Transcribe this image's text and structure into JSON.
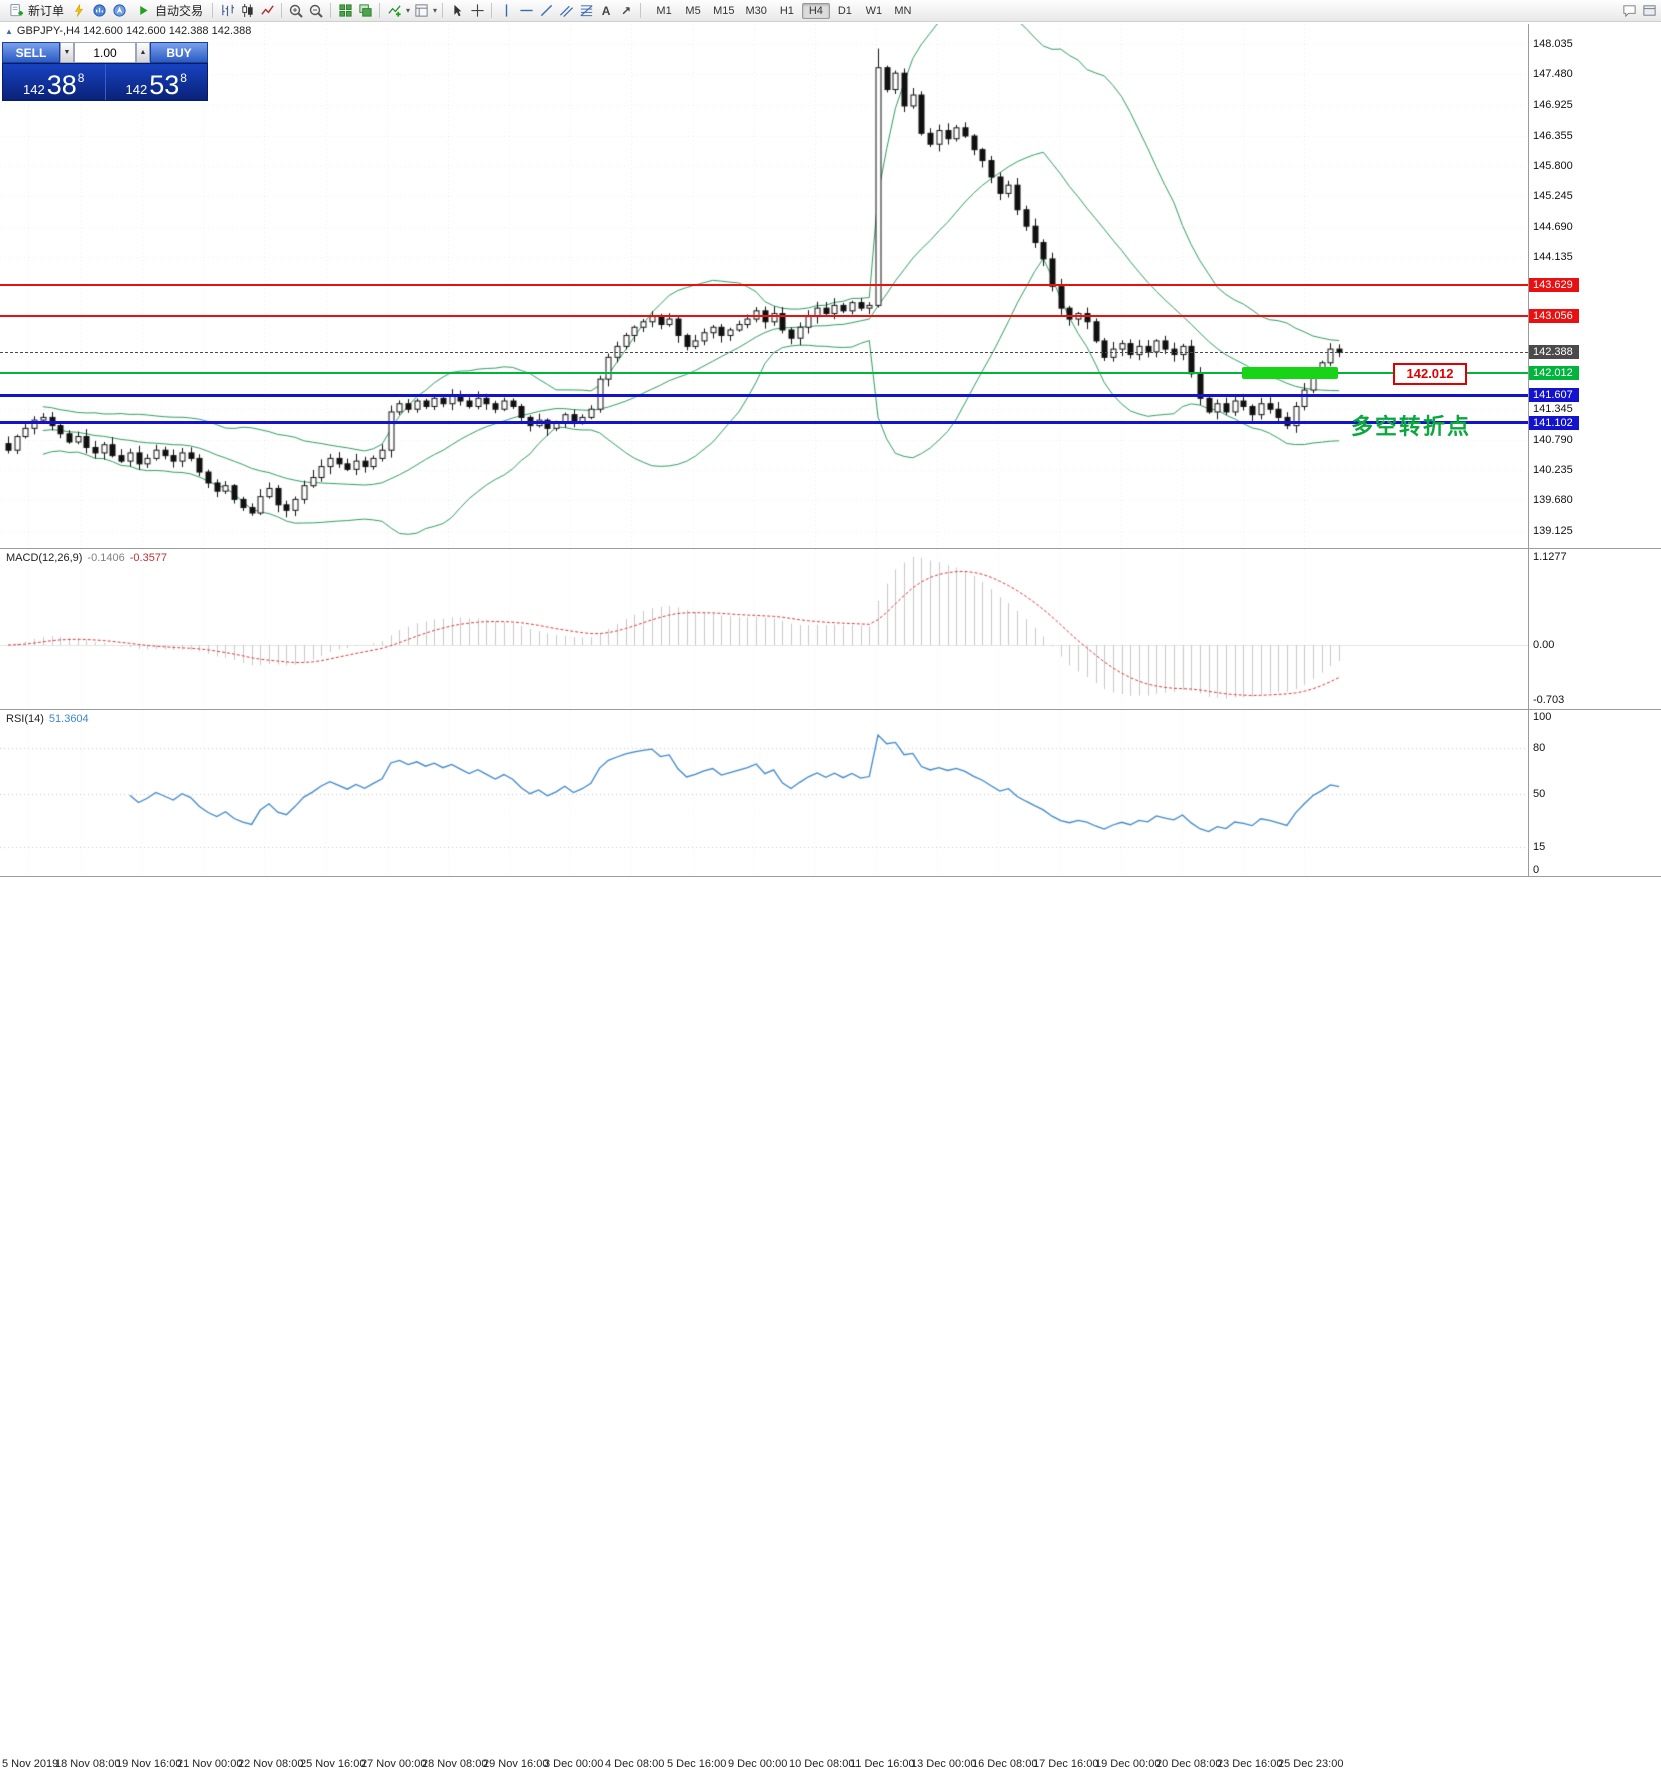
{
  "toolbar": {
    "new_order_label": "新订单",
    "autotrading_label": "自动交易",
    "timeframes": [
      "M1",
      "M5",
      "M15",
      "M30",
      "H1",
      "H4",
      "D1",
      "W1",
      "MN"
    ],
    "active_timeframe": "H4"
  },
  "icons": {
    "window_marker": "▲",
    "dropdown_caret": "▾",
    "spin_up": "▲",
    "spin_down": "▼",
    "text_tool": "A",
    "arrow_tool": "↗"
  },
  "chart_window": {
    "title": "GBPJPY-,H4  142.600 142.600 142.388 142.388"
  },
  "trade_panel": {
    "sell_label": "SELL",
    "buy_label": "BUY",
    "volume": "1.00",
    "sell_price": {
      "prefix": "142",
      "big": "38",
      "sup": "8"
    },
    "buy_price": {
      "prefix": "142",
      "big": "53",
      "sup": "8"
    }
  },
  "annotations": {
    "callout": "142.012",
    "turning_point": "多空转折点"
  },
  "chart_data": {
    "type": "candlestick",
    "symbol": "GBPJPY-",
    "timeframe": "H4",
    "price_range": [
      138.81,
      148.4
    ],
    "session_high": 147.95,
    "session_low": 139.4,
    "bollinger": {
      "period": 20,
      "deviation": 2
    },
    "closes": [
      140.6,
      140.85,
      141.0,
      141.15,
      141.2,
      141.05,
      140.9,
      140.75,
      140.85,
      140.65,
      140.55,
      140.7,
      140.5,
      140.4,
      140.55,
      140.35,
      140.45,
      140.6,
      140.5,
      140.4,
      140.55,
      140.45,
      140.2,
      140.0,
      139.85,
      139.95,
      139.7,
      139.55,
      139.45,
      139.75,
      139.9,
      139.6,
      139.5,
      139.7,
      139.95,
      140.1,
      140.3,
      140.45,
      140.35,
      140.25,
      140.4,
      140.3,
      140.45,
      140.6,
      141.3,
      141.45,
      141.35,
      141.5,
      141.4,
      141.55,
      141.45,
      141.6,
      141.5,
      141.4,
      141.55,
      141.45,
      141.35,
      141.5,
      141.4,
      141.2,
      141.05,
      141.15,
      141.0,
      141.1,
      141.25,
      141.1,
      141.2,
      141.35,
      141.9,
      142.3,
      142.5,
      142.7,
      142.85,
      142.95,
      143.05,
      142.9,
      143.0,
      142.7,
      142.5,
      142.6,
      142.75,
      142.85,
      142.7,
      142.8,
      142.9,
      143.0,
      143.15,
      142.95,
      143.1,
      142.8,
      142.65,
      142.85,
      143.05,
      143.2,
      143.1,
      143.25,
      143.15,
      143.3,
      143.2,
      143.25,
      147.6,
      147.2,
      147.5,
      146.9,
      147.1,
      146.4,
      146.2,
      146.45,
      146.3,
      146.5,
      146.35,
      146.1,
      145.9,
      145.6,
      145.3,
      145.45,
      145.0,
      144.7,
      144.4,
      144.1,
      143.6,
      143.2,
      143.0,
      143.1,
      142.95,
      142.6,
      142.3,
      142.45,
      142.55,
      142.35,
      142.5,
      142.4,
      142.6,
      142.45,
      142.35,
      142.5,
      142.0,
      141.55,
      141.3,
      141.45,
      141.3,
      141.5,
      141.4,
      141.25,
      141.45,
      141.35,
      141.2,
      141.05,
      141.4,
      141.7,
      142.0,
      142.2,
      142.45,
      142.39
    ],
    "price_ticks": [
      "148.035",
      "147.480",
      "146.925",
      "146.355",
      "145.800",
      "145.245",
      "144.690",
      "144.135",
      "141.345",
      "140.790",
      "140.235",
      "139.680",
      "139.125"
    ],
    "levels": [
      {
        "price": 143.629,
        "label": "143.629",
        "color": "#e81010",
        "weight": 2,
        "style": "solid",
        "name": "resistance-line-1"
      },
      {
        "price": 143.056,
        "label": "143.056",
        "color": "#e81010",
        "weight": 2,
        "style": "solid",
        "name": "resistance-line-2"
      },
      {
        "price": 142.388,
        "label": "142.388",
        "color": "#4a4a4a",
        "weight": 1,
        "style": "dash",
        "name": "current-price-line"
      },
      {
        "price": 142.012,
        "label": "142.012",
        "color": "#00b43c",
        "weight": 2,
        "style": "solid",
        "name": "pivot-line"
      },
      {
        "price": 141.607,
        "label": "141.607",
        "color": "#1313cf",
        "weight": 3,
        "style": "solid",
        "name": "support-line-1"
      },
      {
        "price": 141.102,
        "label": "141.102",
        "color": "#1313cf",
        "weight": 3,
        "style": "solid",
        "name": "support-line-2"
      }
    ],
    "macd": {
      "label_name": "MACD(12,26,9)",
      "label_value": "-0.1406",
      "label_signal": "-0.3577",
      "axis": [
        {
          "v": 1.1277,
          "t": "1.1277"
        },
        {
          "v": 0,
          "t": "0.00"
        },
        {
          "v": -0.703,
          "t": "-0.703"
        }
      ]
    },
    "rsi": {
      "label_name": "RSI(14)",
      "label_value": "51.3604",
      "axis": [
        {
          "v": 100,
          "t": "100"
        },
        {
          "v": 80,
          "t": "80"
        },
        {
          "v": 50,
          "t": "50"
        },
        {
          "v": 15,
          "t": "15"
        },
        {
          "v": 0,
          "t": "0"
        }
      ]
    },
    "time_labels": [
      "5 Nov 2019",
      "18 Nov 08:00",
      "19 Nov 16:00",
      "21 Nov 00:00",
      "22 Nov 08:00",
      "25 Nov 16:00",
      "27 Nov 00:00",
      "28 Nov 08:00",
      "29 Nov 16:00",
      "3 Dec 00:00",
      "4 Dec 08:00",
      "5 Dec 16:00",
      "9 Dec 00:00",
      "10 Dec 08:00",
      "11 Dec 16:00",
      "13 Dec 00:00",
      "16 Dec 08:00",
      "17 Dec 16:00",
      "19 Dec 00:00",
      "20 Dec 08:00",
      "23 Dec 16:00",
      "25 Dec 23:00"
    ]
  }
}
